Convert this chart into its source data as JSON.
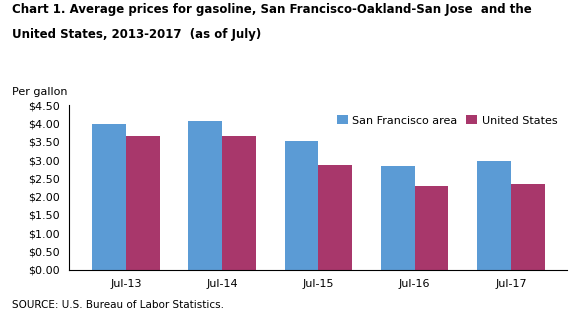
{
  "title_line1": "Chart 1. Average prices for gasoline, San Francisco-Oakland-San Jose  and the",
  "title_line2": "United States, 2013-2017  (as of July)",
  "per_gallon_label": "Per gallon",
  "source": "SOURCE: U.S. Bureau of Labor Statistics.",
  "categories": [
    "Jul-13",
    "Jul-14",
    "Jul-15",
    "Jul-16",
    "Jul-17"
  ],
  "sf_values": [
    3.99,
    4.08,
    3.52,
    2.85,
    2.99
  ],
  "us_values": [
    3.65,
    3.67,
    2.87,
    2.3,
    2.35
  ],
  "sf_color": "#5B9BD5",
  "us_color": "#A8376B",
  "ylim": [
    0,
    4.5
  ],
  "yticks": [
    0.0,
    0.5,
    1.0,
    1.5,
    2.0,
    2.5,
    3.0,
    3.5,
    4.0,
    4.5
  ],
  "legend_labels": [
    "San Francisco area",
    "United States"
  ],
  "bar_width": 0.35,
  "title_fontsize": 8.5,
  "axis_fontsize": 8.0,
  "legend_fontsize": 8.0,
  "source_fontsize": 7.5,
  "per_gallon_fontsize": 8.0,
  "background_color": "#ffffff"
}
